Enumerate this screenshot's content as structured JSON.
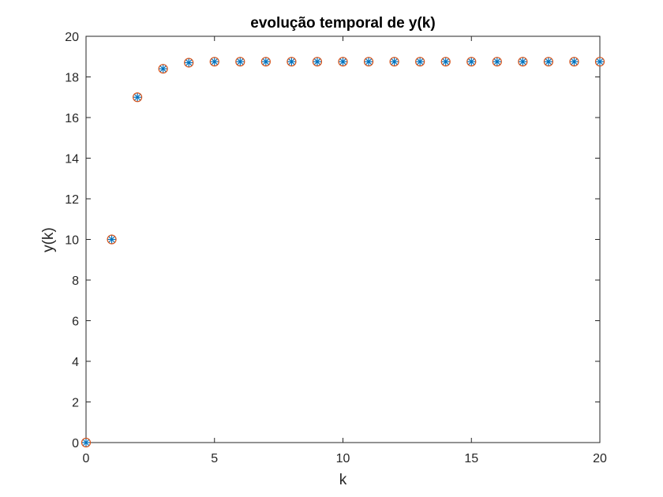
{
  "chart_data": {
    "type": "scatter",
    "title": "evolução temporal de y(k)",
    "xlabel": "k",
    "ylabel": "y(k)",
    "xlim": [
      0,
      20
    ],
    "ylim": [
      0,
      20
    ],
    "xticks": [
      0,
      5,
      10,
      15,
      20
    ],
    "yticks": [
      0,
      2,
      4,
      6,
      8,
      10,
      12,
      14,
      16,
      18,
      20
    ],
    "grid": false,
    "series": [
      {
        "marker": "circle",
        "color": "#D95319",
        "x": [
          0,
          1,
          2,
          3,
          4,
          5,
          6,
          7,
          8,
          9,
          10,
          11,
          12,
          13,
          14,
          15,
          16,
          17,
          18,
          19,
          20
        ],
        "y": [
          0,
          10,
          17,
          18.4,
          18.7,
          18.75,
          18.75,
          18.75,
          18.75,
          18.75,
          18.75,
          18.75,
          18.75,
          18.75,
          18.75,
          18.75,
          18.75,
          18.75,
          18.75,
          18.75,
          18.75
        ]
      },
      {
        "marker": "asterisk",
        "color": "#0072BD",
        "x": [
          0,
          1,
          2,
          3,
          4,
          5,
          6,
          7,
          8,
          9,
          10,
          11,
          12,
          13,
          14,
          15,
          16,
          17,
          18,
          19,
          20
        ],
        "y": [
          0,
          10,
          17,
          18.4,
          18.7,
          18.75,
          18.75,
          18.75,
          18.75,
          18.75,
          18.75,
          18.75,
          18.75,
          18.75,
          18.75,
          18.75,
          18.75,
          18.75,
          18.75,
          18.75,
          18.75
        ]
      }
    ]
  }
}
